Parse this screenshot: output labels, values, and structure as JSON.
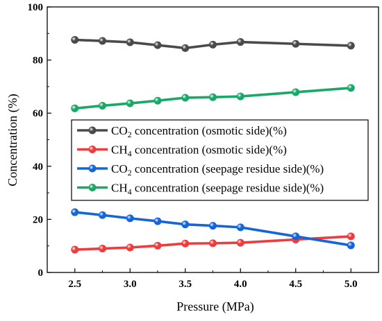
{
  "chart_data": {
    "type": "line",
    "title": "",
    "xlabel": "Pressure (MPa)",
    "ylabel": "Concentration (%)",
    "xlim": [
      2.25,
      5.25
    ],
    "ylim": [
      0,
      100
    ],
    "x_ticks": [
      2.5,
      3.0,
      3.5,
      4.0,
      4.5,
      5.0
    ],
    "x_tick_labels": [
      "2.5",
      "3.0",
      "3.5",
      "4.0",
      "4.5",
      "5.0"
    ],
    "y_ticks": [
      0,
      20,
      40,
      60,
      80,
      100
    ],
    "y_tick_labels": [
      "0",
      "20",
      "40",
      "60",
      "80",
      "100"
    ],
    "grid": false,
    "legend_placement": "center-right",
    "series": [
      {
        "name_main": "CO",
        "name_sub": "2",
        "name_rest": " concentration (osmotic side)(%)",
        "color": "#4a4a4a",
        "x": [
          2.5,
          2.75,
          3.0,
          3.25,
          3.5,
          3.75,
          4.0,
          4.5,
          5.0
        ],
        "values": [
          87.6,
          87.2,
          86.7,
          85.6,
          84.5,
          85.8,
          86.8,
          86.1,
          85.4
        ]
      },
      {
        "name_main": "CH",
        "name_sub": "4",
        "name_rest": " concentration (osmotic side)(%)",
        "color": "#ee3b3b",
        "x": [
          2.5,
          2.75,
          3.0,
          3.25,
          3.5,
          3.75,
          4.0,
          4.5,
          5.0
        ],
        "values": [
          8.6,
          9.0,
          9.4,
          10.1,
          10.9,
          11.0,
          11.2,
          12.4,
          13.6
        ]
      },
      {
        "name_main": "CO",
        "name_sub": "2",
        "name_rest": " concentration (seepage residue side)(%)",
        "color": "#1565d8",
        "x": [
          2.5,
          2.75,
          3.0,
          3.25,
          3.5,
          3.75,
          4.0,
          4.5,
          5.0
        ],
        "values": [
          22.7,
          21.6,
          20.4,
          19.3,
          18.1,
          17.6,
          17.0,
          13.6,
          10.2
        ]
      },
      {
        "name_main": "CH",
        "name_sub": "4",
        "name_rest": " concentration (seepage residue side)(%)",
        "color": "#1aa868",
        "x": [
          2.5,
          2.75,
          3.0,
          3.25,
          3.5,
          3.75,
          4.0,
          4.5,
          5.0
        ],
        "values": [
          61.8,
          62.8,
          63.7,
          64.7,
          65.8,
          66.0,
          66.3,
          67.9,
          69.5
        ]
      }
    ]
  }
}
